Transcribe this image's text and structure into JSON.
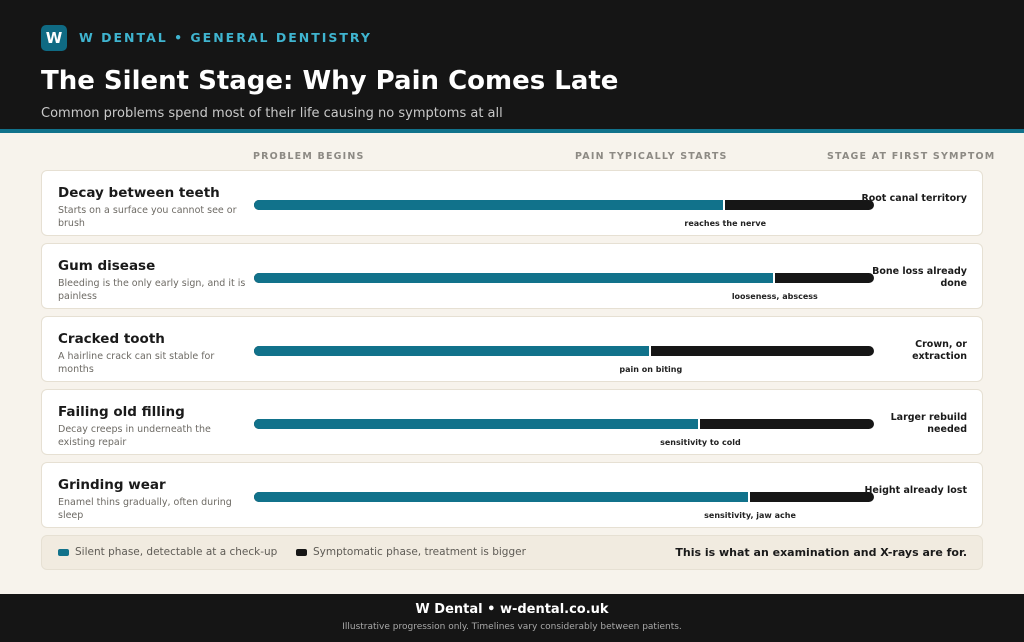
{
  "header": {
    "logo_letter": "W",
    "brand": "W DENTAL • GENERAL DENTISTRY",
    "title": "The Silent Stage: Why Pain Comes Late",
    "subtitle": "Common problems spend most of their life causing no symptoms at all"
  },
  "columns": {
    "begin": "PROBLEM BEGINS",
    "pain": "PAIN TYPICALLY STARTS",
    "stage": "STAGE AT FIRST SYMPTOM"
  },
  "colors": {
    "silent": "#11728b",
    "symptomatic": "#161616",
    "background": "#f7f3ec"
  },
  "rows": [
    {
      "name": "Decay between teeth",
      "description": "Starts on a surface you cannot see or brush",
      "silent_fraction": 0.76,
      "pain_label": "reaches the nerve",
      "outcome": "Root canal territory"
    },
    {
      "name": "Gum disease",
      "description": "Bleeding is the only early sign, and it is painless",
      "silent_fraction": 0.84,
      "pain_label": "looseness, abscess",
      "outcome": "Bone loss already done"
    },
    {
      "name": "Cracked tooth",
      "description": "A hairline crack can sit stable for months",
      "silent_fraction": 0.64,
      "pain_label": "pain on biting",
      "outcome": "Crown, or extraction"
    },
    {
      "name": "Failing old filling",
      "description": "Decay creeps in underneath the existing repair",
      "silent_fraction": 0.72,
      "pain_label": "sensitivity to cold",
      "outcome": "Larger rebuild needed"
    },
    {
      "name": "Grinding wear",
      "description": "Enamel thins gradually, often during sleep",
      "silent_fraction": 0.8,
      "pain_label": "sensitivity, jaw ache",
      "outcome": "Height already lost"
    }
  ],
  "legend": {
    "silent": "Silent phase, detectable at a check-up",
    "symptomatic": "Symptomatic phase, treatment is bigger",
    "note": "This is what an examination and X-rays are for."
  },
  "footer": {
    "title": "W Dental • w-dental.co.uk",
    "note": "Illustrative progression only. Timelines vary considerably between patients."
  }
}
